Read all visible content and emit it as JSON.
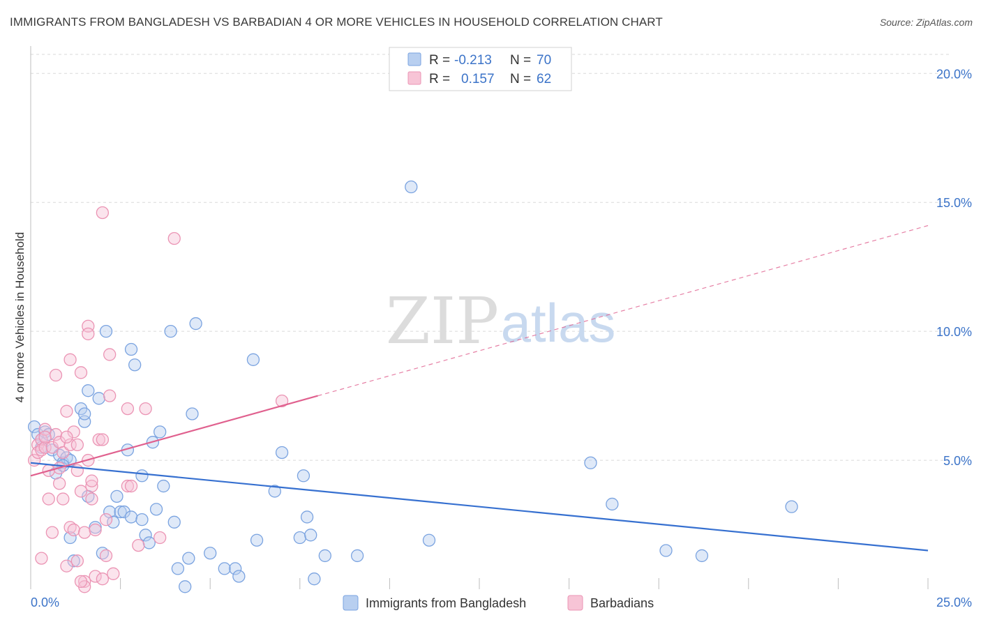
{
  "title": "IMMIGRANTS FROM BANGLADESH VS BARBADIAN 4 OR MORE VEHICLES IN HOUSEHOLD CORRELATION CHART",
  "source": "Source: ZipAtlas.com",
  "watermark": {
    "zip": "ZIP",
    "atlas": "atlas"
  },
  "colors": {
    "blue": "#3670d0",
    "blue_fill": "#b8cff0",
    "blue_stroke": "#7aa3e0",
    "pink": "#e0608e",
    "pink_fill": "#f7c4d6",
    "pink_stroke": "#eb94b4",
    "tick": "#3b73c8",
    "grid": "#d9d9d9"
  },
  "legend": {
    "rows": [
      {
        "r_label": "R =",
        "r_value": "-0.213",
        "n_label": "N =",
        "n_value": "70"
      },
      {
        "r_label": "R =",
        "r_value": "0.157",
        "n_label": "N =",
        "n_value": "62"
      }
    ]
  },
  "chart_data": {
    "type": "scatter",
    "title": "IMMIGRANTS FROM BANGLADESH VS BARBADIAN 4 OR MORE VEHICLES IN HOUSEHOLD CORRELATION CHART",
    "xlabel": "",
    "ylabel": "4 or more Vehicles in Household",
    "xlim": [
      0,
      25
    ],
    "ylim": [
      0,
      20.9
    ],
    "x_tick_labels": [
      {
        "value": 0,
        "label": "0.0%"
      },
      {
        "value": 25,
        "label": "25.0%"
      }
    ],
    "y_tick_labels": [
      {
        "value": 5,
        "label": "5.0%"
      },
      {
        "value": 10,
        "label": "10.0%"
      },
      {
        "value": 15,
        "label": "15.0%"
      },
      {
        "value": 20,
        "label": "20.0%"
      }
    ],
    "series": [
      {
        "name": "Immigrants from Bangladesh",
        "color": "#3670d0",
        "trend": {
          "x0": 0,
          "y0": 4.9,
          "x1": 25,
          "y1": 1.5
        },
        "points": [
          [
            0.1,
            6.3
          ],
          [
            0.2,
            6.0
          ],
          [
            0.3,
            5.8
          ],
          [
            0.4,
            6.1
          ],
          [
            0.3,
            5.5
          ],
          [
            0.6,
            5.4
          ],
          [
            0.8,
            5.2
          ],
          [
            0.9,
            4.9
          ],
          [
            1.0,
            5.1
          ],
          [
            0.7,
            4.5
          ],
          [
            1.1,
            5.0
          ],
          [
            1.4,
            7.0
          ],
          [
            1.5,
            6.5
          ],
          [
            1.5,
            6.8
          ],
          [
            1.6,
            3.6
          ],
          [
            1.6,
            7.7
          ],
          [
            1.8,
            2.4
          ],
          [
            1.9,
            7.4
          ],
          [
            2.0,
            1.4
          ],
          [
            2.1,
            10.0
          ],
          [
            2.2,
            3.0
          ],
          [
            2.3,
            2.6
          ],
          [
            2.4,
            3.6
          ],
          [
            2.5,
            3.0
          ],
          [
            2.6,
            3.0
          ],
          [
            2.7,
            5.4
          ],
          [
            2.8,
            2.8
          ],
          [
            2.8,
            9.3
          ],
          [
            2.9,
            8.7
          ],
          [
            3.1,
            4.4
          ],
          [
            3.1,
            2.7
          ],
          [
            3.2,
            2.1
          ],
          [
            3.3,
            1.8
          ],
          [
            3.4,
            5.7
          ],
          [
            3.5,
            3.1
          ],
          [
            3.6,
            6.1
          ],
          [
            3.7,
            4.0
          ],
          [
            3.9,
            10.0
          ],
          [
            4.0,
            2.6
          ],
          [
            4.1,
            0.8
          ],
          [
            4.3,
            0.1
          ],
          [
            4.4,
            1.2
          ],
          [
            4.5,
            6.8
          ],
          [
            4.6,
            10.3
          ],
          [
            5.0,
            1.4
          ],
          [
            5.4,
            0.8
          ],
          [
            5.7,
            0.8
          ],
          [
            5.8,
            0.5
          ],
          [
            6.2,
            8.9
          ],
          [
            6.3,
            1.9
          ],
          [
            6.8,
            3.8
          ],
          [
            7.0,
            5.3
          ],
          [
            7.5,
            2.0
          ],
          [
            7.6,
            4.4
          ],
          [
            7.7,
            2.8
          ],
          [
            7.8,
            2.1
          ],
          [
            7.9,
            0.4
          ],
          [
            8.2,
            1.3
          ],
          [
            9.1,
            1.3
          ],
          [
            10.6,
            15.6
          ],
          [
            11.1,
            1.9
          ],
          [
            15.6,
            4.9
          ],
          [
            16.2,
            3.3
          ],
          [
            17.7,
            1.5
          ],
          [
            18.7,
            1.3
          ],
          [
            21.2,
            3.2
          ],
          [
            1.2,
            1.1
          ],
          [
            0.5,
            6.0
          ],
          [
            0.9,
            4.8
          ],
          [
            1.1,
            2.0
          ]
        ]
      },
      {
        "name": "Barbadians",
        "color": "#e0608e",
        "trend": {
          "x0": 0,
          "y0": 4.4,
          "x1": 8.0,
          "y1": 7.5,
          "x_dash_end": 25,
          "y_dash_end": 14.1
        },
        "points": [
          [
            0.1,
            5.0
          ],
          [
            0.2,
            5.6
          ],
          [
            0.2,
            5.3
          ],
          [
            0.3,
            5.8
          ],
          [
            0.3,
            5.4
          ],
          [
            0.3,
            1.2
          ],
          [
            0.4,
            6.2
          ],
          [
            0.4,
            5.5
          ],
          [
            0.5,
            4.6
          ],
          [
            0.5,
            3.5
          ],
          [
            0.6,
            2.2
          ],
          [
            0.6,
            5.5
          ],
          [
            0.7,
            6.0
          ],
          [
            0.7,
            8.3
          ],
          [
            0.8,
            5.7
          ],
          [
            0.8,
            4.7
          ],
          [
            0.8,
            4.1
          ],
          [
            0.9,
            5.3
          ],
          [
            0.9,
            3.5
          ],
          [
            1.0,
            6.9
          ],
          [
            1.0,
            0.9
          ],
          [
            1.1,
            2.4
          ],
          [
            1.1,
            5.6
          ],
          [
            1.1,
            8.9
          ],
          [
            1.2,
            2.3
          ],
          [
            1.2,
            6.1
          ],
          [
            1.3,
            5.6
          ],
          [
            1.3,
            1.1
          ],
          [
            1.3,
            4.6
          ],
          [
            1.4,
            8.4
          ],
          [
            1.4,
            3.8
          ],
          [
            1.5,
            0.3
          ],
          [
            1.5,
            0.1
          ],
          [
            1.5,
            2.2
          ],
          [
            1.6,
            5.0
          ],
          [
            1.6,
            10.2
          ],
          [
            1.6,
            9.9
          ],
          [
            1.7,
            3.5
          ],
          [
            1.7,
            4.0
          ],
          [
            1.7,
            4.2
          ],
          [
            1.8,
            0.5
          ],
          [
            1.8,
            2.3
          ],
          [
            1.9,
            5.8
          ],
          [
            2.0,
            5.8
          ],
          [
            2.0,
            0.4
          ],
          [
            2.1,
            1.3
          ],
          [
            2.1,
            2.7
          ],
          [
            2.2,
            9.1
          ],
          [
            2.2,
            7.5
          ],
          [
            2.3,
            0.6
          ],
          [
            2.7,
            7.0
          ],
          [
            2.7,
            4.0
          ],
          [
            2.8,
            4.0
          ],
          [
            3.0,
            1.7
          ],
          [
            3.2,
            7.0
          ],
          [
            3.6,
            2.0
          ],
          [
            4.0,
            13.6
          ],
          [
            2.0,
            14.6
          ],
          [
            7.0,
            7.3
          ],
          [
            1.4,
            0.3
          ],
          [
            0.4,
            5.9
          ],
          [
            1.0,
            5.9
          ]
        ]
      }
    ]
  },
  "bottom_legend": [
    "Immigrants from Bangladesh",
    "Barbadians"
  ]
}
